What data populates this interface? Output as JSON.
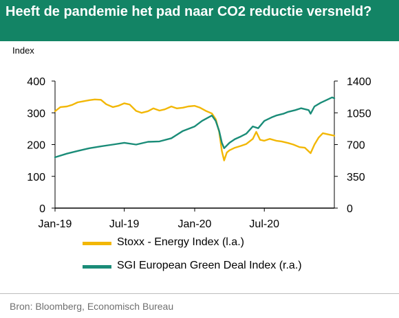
{
  "header": {
    "title": "Heeft de pandemie het pad naar CO2 reductie versneld?",
    "unit_label": "Index"
  },
  "footer": {
    "source": "Bron: Bloomberg, Economisch Bureau"
  },
  "colors": {
    "header_bg": "#138465",
    "energy": "#F2B705",
    "green_deal": "#1A8C78"
  },
  "chart_data": {
    "type": "line",
    "grid": false,
    "legend_position": "bottom",
    "x_ticks": [
      "Jan-19",
      "Jul-19",
      "Jan-20",
      "Jul-20"
    ],
    "x_tick_dates": [
      "2019-01-01",
      "2019-07-01",
      "2020-01-01",
      "2020-07-01"
    ],
    "x_range": [
      "2019-01-01",
      "2020-12-31"
    ],
    "left_axis": {
      "ticks": [
        0,
        100,
        200,
        300,
        400
      ],
      "range": [
        0,
        400
      ]
    },
    "right_axis": {
      "ticks": [
        0,
        350,
        700,
        1050,
        1400
      ],
      "range": [
        0,
        1400
      ]
    },
    "series": [
      {
        "name": "Stoxx - Energy Index (l.a.)",
        "axis": "left",
        "color": "#F2B705",
        "points": [
          [
            "2019-01-01",
            305
          ],
          [
            "2019-01-15",
            318
          ],
          [
            "2019-02-01",
            320
          ],
          [
            "2019-02-15",
            325
          ],
          [
            "2019-03-01",
            333
          ],
          [
            "2019-03-15",
            336
          ],
          [
            "2019-04-01",
            340
          ],
          [
            "2019-04-15",
            342
          ],
          [
            "2019-05-01",
            341
          ],
          [
            "2019-05-15",
            327
          ],
          [
            "2019-06-01",
            318
          ],
          [
            "2019-06-15",
            322
          ],
          [
            "2019-07-01",
            330
          ],
          [
            "2019-07-15",
            326
          ],
          [
            "2019-08-01",
            306
          ],
          [
            "2019-08-15",
            300
          ],
          [
            "2019-09-01",
            305
          ],
          [
            "2019-09-15",
            314
          ],
          [
            "2019-10-01",
            307
          ],
          [
            "2019-10-15",
            311
          ],
          [
            "2019-11-01",
            320
          ],
          [
            "2019-11-15",
            314
          ],
          [
            "2019-12-01",
            316
          ],
          [
            "2019-12-15",
            320
          ],
          [
            "2020-01-01",
            322
          ],
          [
            "2020-01-15",
            316
          ],
          [
            "2020-02-01",
            305
          ],
          [
            "2020-02-15",
            298
          ],
          [
            "2020-02-25",
            280
          ],
          [
            "2020-03-05",
            240
          ],
          [
            "2020-03-12",
            180
          ],
          [
            "2020-03-18",
            150
          ],
          [
            "2020-03-25",
            175
          ],
          [
            "2020-04-01",
            182
          ],
          [
            "2020-04-15",
            190
          ],
          [
            "2020-05-01",
            196
          ],
          [
            "2020-05-15",
            202
          ],
          [
            "2020-06-01",
            218
          ],
          [
            "2020-06-10",
            240
          ],
          [
            "2020-06-20",
            215
          ],
          [
            "2020-07-01",
            212
          ],
          [
            "2020-07-15",
            218
          ],
          [
            "2020-08-01",
            212
          ],
          [
            "2020-08-15",
            210
          ],
          [
            "2020-09-01",
            205
          ],
          [
            "2020-09-15",
            200
          ],
          [
            "2020-10-01",
            192
          ],
          [
            "2020-10-15",
            190
          ],
          [
            "2020-10-30",
            173
          ],
          [
            "2020-11-09",
            200
          ],
          [
            "2020-11-20",
            222
          ],
          [
            "2020-12-01",
            236
          ],
          [
            "2020-12-15",
            232
          ],
          [
            "2020-12-31",
            228
          ]
        ]
      },
      {
        "name": "SGI European Green Deal Index (r.a.)",
        "axis": "right",
        "color": "#1A8C78",
        "points": [
          [
            "2019-01-01",
            560
          ],
          [
            "2019-02-01",
            600
          ],
          [
            "2019-03-01",
            630
          ],
          [
            "2019-04-01",
            660
          ],
          [
            "2019-05-01",
            680
          ],
          [
            "2019-06-01",
            700
          ],
          [
            "2019-07-01",
            720
          ],
          [
            "2019-08-01",
            700
          ],
          [
            "2019-09-01",
            730
          ],
          [
            "2019-10-01",
            735
          ],
          [
            "2019-11-01",
            770
          ],
          [
            "2019-12-01",
            850
          ],
          [
            "2020-01-01",
            900
          ],
          [
            "2020-01-20",
            960
          ],
          [
            "2020-02-15",
            1020
          ],
          [
            "2020-02-25",
            960
          ],
          [
            "2020-03-05",
            850
          ],
          [
            "2020-03-12",
            720
          ],
          [
            "2020-03-18",
            660
          ],
          [
            "2020-04-01",
            720
          ],
          [
            "2020-04-15",
            760
          ],
          [
            "2020-05-01",
            790
          ],
          [
            "2020-05-15",
            820
          ],
          [
            "2020-06-01",
            900
          ],
          [
            "2020-06-15",
            880
          ],
          [
            "2020-07-01",
            960
          ],
          [
            "2020-07-20",
            1000
          ],
          [
            "2020-08-01",
            1020
          ],
          [
            "2020-08-20",
            1040
          ],
          [
            "2020-09-01",
            1060
          ],
          [
            "2020-09-20",
            1080
          ],
          [
            "2020-10-05",
            1100
          ],
          [
            "2020-10-25",
            1080
          ],
          [
            "2020-10-30",
            1040
          ],
          [
            "2020-11-09",
            1120
          ],
          [
            "2020-11-25",
            1160
          ],
          [
            "2020-12-10",
            1190
          ],
          [
            "2020-12-25",
            1220
          ],
          [
            "2020-12-31",
            1210
          ]
        ]
      }
    ]
  }
}
